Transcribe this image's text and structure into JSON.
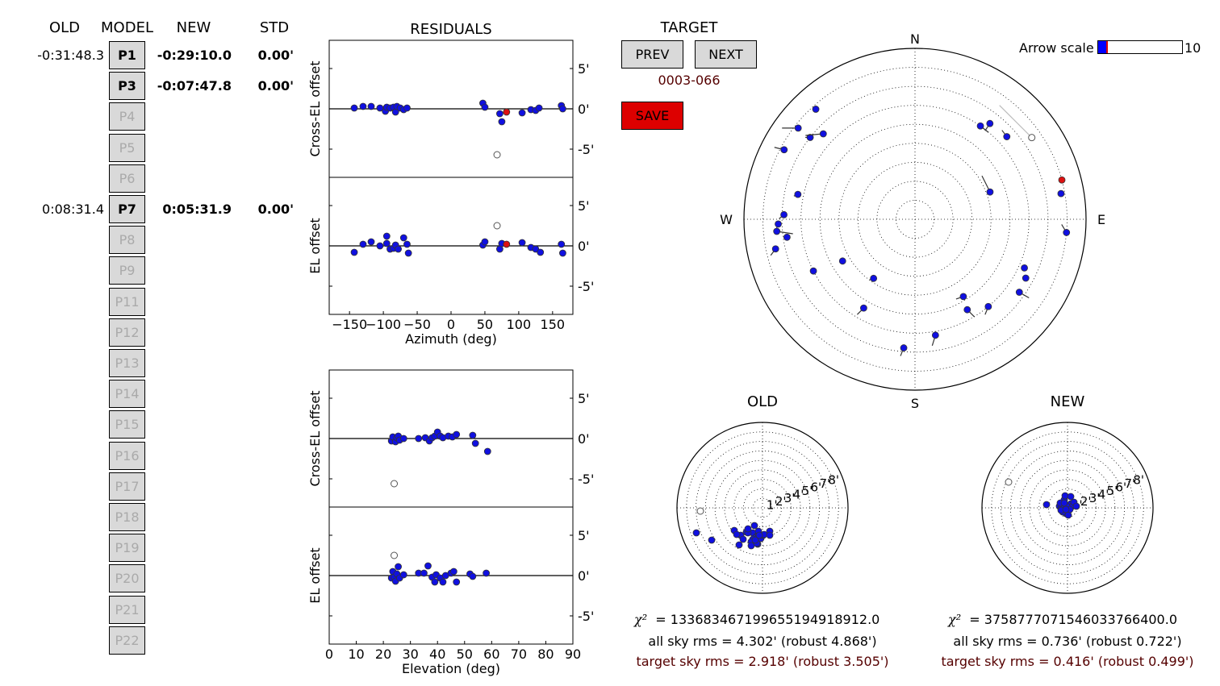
{
  "columns": {
    "old": "OLD",
    "model": "MODEL",
    "new": "NEW",
    "std": "STD"
  },
  "params": [
    {
      "label": "P1",
      "old": "-0:31:48.3",
      "new": "-0:29:10.0",
      "std": "0.00'",
      "active": true
    },
    {
      "label": "P3",
      "old": "",
      "new": "-0:07:47.8",
      "std": "0.00'",
      "active": true
    },
    {
      "label": "P4",
      "active": false
    },
    {
      "label": "P5",
      "active": false
    },
    {
      "label": "P6",
      "active": false
    },
    {
      "label": "P7",
      "old": "0:08:31.4",
      "new": "0:05:31.9",
      "std": "0.00'",
      "active": true
    },
    {
      "label": "P8",
      "active": false
    },
    {
      "label": "P9",
      "active": false
    },
    {
      "label": "P11",
      "active": false
    },
    {
      "label": "P12",
      "active": false
    },
    {
      "label": "P13",
      "active": false
    },
    {
      "label": "P14",
      "active": false
    },
    {
      "label": "P15",
      "active": false
    },
    {
      "label": "P16",
      "active": false
    },
    {
      "label": "P17",
      "active": false
    },
    {
      "label": "P18",
      "active": false
    },
    {
      "label": "P19",
      "active": false
    },
    {
      "label": "P20",
      "active": false
    },
    {
      "label": "P21",
      "active": false
    },
    {
      "label": "P22",
      "active": false
    }
  ],
  "residuals": {
    "title": "RESIDUALS",
    "cross_el_label": "Cross-EL offset",
    "el_label": "EL offset",
    "az_xlabel": "Azimuth (deg)",
    "el_xlabel": "Elevation (deg)",
    "y_ticks": [
      "5'",
      "0'",
      "-5'"
    ],
    "az_ticks": [
      "−150",
      "−100",
      "−50",
      "0",
      "50",
      "100",
      "150"
    ],
    "el_ticks": [
      "0",
      "10",
      "20",
      "30",
      "40",
      "50",
      "60",
      "70",
      "80",
      "90"
    ]
  },
  "target": {
    "title": "TARGET",
    "prev_label": "PREV",
    "next_label": "NEXT",
    "name": "0003-066",
    "save_label": "SAVE"
  },
  "sky": {
    "n": "N",
    "s": "S",
    "e": "E",
    "w": "W",
    "arrow_scale_label": "Arrow scale",
    "arrow_scale_max": "10",
    "arrow_scale_value": 0.1
  },
  "old_panel": {
    "title": "OLD",
    "chi2_label": "χ²",
    "chi2": "= 133683467199655194918912.0",
    "all_rms": "all sky rms = 4.302' (robust 4.868')",
    "target_rms": "target sky rms = 2.918' (robust 3.505')"
  },
  "new_panel": {
    "title": "NEW",
    "chi2_label": "χ²",
    "chi2": "= 37587770715460337664​00.0",
    "all_rms": "all sky rms = 0.736' (robust 0.722')",
    "target_rms": "target sky rms = 0.416' (robust 0.499')"
  },
  "ring_labels": [
    "1'",
    "2'",
    "3'",
    "4'",
    "5'",
    "6'",
    "7'",
    "8'"
  ],
  "colors": {
    "point": "#1010e0",
    "target": "#dd1111",
    "save": "#dd0000",
    "dark_red": "#550000"
  },
  "chart_data": [
    {
      "type": "scatter",
      "title": "RESIDUALS",
      "xlabel": "Azimuth (deg)",
      "ylabel": "Cross-EL offset",
      "xlim": [
        -180,
        180
      ],
      "ylim": [
        -8.5,
        8.5
      ],
      "points": [
        [
          -143,
          0.1
        ],
        [
          -130,
          0.3
        ],
        [
          -118,
          0.3
        ],
        [
          -105,
          0.1
        ],
        [
          -97,
          -0.3
        ],
        [
          -95,
          0.2
        ],
        [
          -90,
          0.1
        ],
        [
          -85,
          0.2
        ],
        [
          -82,
          -0.4
        ],
        [
          -80,
          0.3
        ],
        [
          -75,
          0.1
        ],
        [
          -70,
          -0.1
        ],
        [
          -65,
          0.1
        ],
        [
          47,
          0.7
        ],
        [
          50,
          0.2
        ],
        [
          72,
          -0.6
        ],
        [
          75,
          -1.6
        ],
        [
          105,
          -0.5
        ],
        [
          118,
          -0.1
        ],
        [
          125,
          -0.2
        ],
        [
          130,
          0.1
        ],
        [
          163,
          0.4
        ],
        [
          165,
          0
        ]
      ],
      "target": [
        [
          82,
          -0.4
        ]
      ],
      "excluded": [
        [
          68,
          -5.7
        ]
      ]
    },
    {
      "type": "scatter",
      "xlabel": "Azimuth (deg)",
      "ylabel": "EL offset",
      "xlim": [
        -180,
        180
      ],
      "ylim": [
        -8.5,
        8.5
      ],
      "points": [
        [
          -143,
          -0.8
        ],
        [
          -130,
          0.2
        ],
        [
          -118,
          0.5
        ],
        [
          -105,
          0
        ],
        [
          -95,
          1.2
        ],
        [
          -95,
          0.3
        ],
        [
          -90,
          -0.4
        ],
        [
          -85,
          -0.3
        ],
        [
          -82,
          0.1
        ],
        [
          -78,
          -0.4
        ],
        [
          -70,
          1
        ],
        [
          -65,
          0.2
        ],
        [
          -63,
          -0.9
        ],
        [
          47,
          0.1
        ],
        [
          50,
          0.5
        ],
        [
          72,
          -0.4
        ],
        [
          75,
          0.3
        ],
        [
          105,
          0.4
        ],
        [
          118,
          -0.2
        ],
        [
          125,
          -0.4
        ],
        [
          132,
          -0.8
        ],
        [
          163,
          0.2
        ],
        [
          165,
          -0.9
        ]
      ],
      "target": [
        [
          82,
          0.2
        ]
      ],
      "excluded": [
        [
          68,
          2.5
        ]
      ]
    },
    {
      "type": "scatter",
      "xlabel": "Elevation (deg)",
      "ylabel": "Cross-EL offset",
      "xlim": [
        0,
        90
      ],
      "ylim": [
        -8.5,
        8.5
      ],
      "points": [
        [
          23,
          -0.3
        ],
        [
          23.5,
          0.2
        ],
        [
          24.5,
          -0.4
        ],
        [
          25,
          0.1
        ],
        [
          25.5,
          0.3
        ],
        [
          26,
          -0.2
        ],
        [
          27.5,
          0
        ],
        [
          33,
          0
        ],
        [
          35.5,
          0.1
        ],
        [
          37,
          -0.3
        ],
        [
          38,
          0.1
        ],
        [
          39,
          0.3
        ],
        [
          40,
          0.8
        ],
        [
          41,
          0.3
        ],
        [
          42,
          0.1
        ],
        [
          44,
          0.3
        ],
        [
          45.5,
          0.2
        ],
        [
          47,
          0.5
        ],
        [
          53,
          0.4
        ],
        [
          54,
          -0.6
        ],
        [
          58.5,
          -1.6
        ]
      ],
      "excluded": [
        [
          24,
          -5.6
        ]
      ]
    },
    {
      "type": "scatter",
      "xlabel": "Elevation (deg)",
      "ylabel": "EL offset",
      "xlim": [
        0,
        90
      ],
      "ylim": [
        -8.5,
        8.5
      ],
      "points": [
        [
          23,
          -0.3
        ],
        [
          23.5,
          0.5
        ],
        [
          24,
          -0.2
        ],
        [
          24.5,
          -0.7
        ],
        [
          25,
          0.2
        ],
        [
          25.5,
          1.1
        ],
        [
          26,
          -0.3
        ],
        [
          27.5,
          0.1
        ],
        [
          33,
          0.3
        ],
        [
          35,
          0.3
        ],
        [
          36.5,
          1.2
        ],
        [
          38,
          -0.2
        ],
        [
          39,
          -0.8
        ],
        [
          39.5,
          0.1
        ],
        [
          41,
          -0.3
        ],
        [
          42,
          -0.8
        ],
        [
          43,
          0
        ],
        [
          45,
          0.3
        ],
        [
          46,
          0.5
        ],
        [
          47,
          -0.8
        ],
        [
          52,
          0.2
        ],
        [
          53,
          -0.1
        ],
        [
          58,
          0.3
        ]
      ],
      "excluded": [
        [
          24,
          2.5
        ]
      ]
    }
  ],
  "sky_points": [
    {
      "az": 148,
      "zd": 48,
      "dx": -9,
      "dy": 3
    },
    {
      "az": 140,
      "zd": 60,
      "dx": -4,
      "dy": 10
    },
    {
      "az": 150,
      "zd": 55,
      "dx": 9,
      "dy": 9
    },
    {
      "az": 170,
      "zd": 62,
      "dx": -4,
      "dy": 13
    },
    {
      "az": 185,
      "zd": 68,
      "dx": -4,
      "dy": 10
    },
    {
      "az": 215,
      "zd": 38,
      "dx": -5,
      "dy": 2
    },
    {
      "az": 210,
      "zd": 54,
      "dx": -8,
      "dy": 8
    },
    {
      "az": 240,
      "zd": 44,
      "dx": 4,
      "dy": 0
    },
    {
      "az": 243,
      "zd": 60,
      "dx": 0,
      "dy": 0
    },
    {
      "az": 258,
      "zd": 75,
      "dx": -6,
      "dy": 8
    },
    {
      "az": 262,
      "zd": 68,
      "dx": 0,
      "dy": 0
    },
    {
      "az": 265,
      "zd": 73,
      "dx": 20,
      "dy": 3
    },
    {
      "az": 268,
      "zd": 72,
      "dx": -2,
      "dy": 5
    },
    {
      "az": 272,
      "zd": 69,
      "dx": -6,
      "dy": 5
    },
    {
      "az": 282,
      "zd": 63,
      "dx": -5,
      "dy": 2
    },
    {
      "az": 298,
      "zd": 78,
      "dx": -12,
      "dy": -3
    },
    {
      "az": 308,
      "zd": 70,
      "dx": -6,
      "dy": 0
    },
    {
      "az": 313,
      "zd": 66,
      "dx": -22,
      "dy": 2
    },
    {
      "az": 308,
      "zd": 78,
      "dx": -20,
      "dy": 0
    },
    {
      "az": 318,
      "zd": 78,
      "dx": 0,
      "dy": 0
    },
    {
      "az": 35,
      "zd": 60,
      "dx": 10,
      "dy": 8
    },
    {
      "az": 38,
      "zd": 64,
      "dx": -6,
      "dy": 9
    },
    {
      "az": 48,
      "zd": 65,
      "dx": -6,
      "dy": -8
    },
    {
      "az": 70,
      "zd": 42,
      "dx": -10,
      "dy": -20
    },
    {
      "az": 95,
      "zd": 80,
      "dx": -6,
      "dy": -10
    },
    {
      "az": 80,
      "zd": 78,
      "dx": 0,
      "dy": 0
    },
    {
      "az": 118,
      "zd": 66,
      "dx": 0,
      "dy": 0
    },
    {
      "az": 114,
      "zd": 63,
      "dx": 0,
      "dy": 0
    },
    {
      "az": 125,
      "zd": 67,
      "dx": 12,
      "dy": 7
    }
  ],
  "sky_target": {
    "az": 75,
    "zd": 80
  },
  "sky_excluded": {
    "az": 55,
    "zd": 75
  }
}
